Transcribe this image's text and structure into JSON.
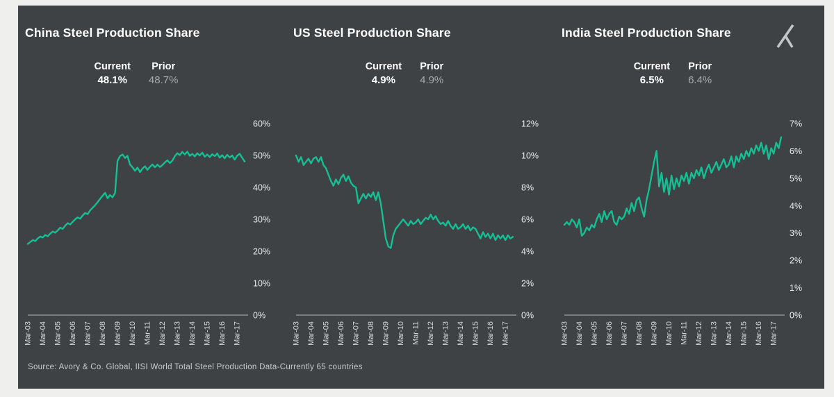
{
  "page": {
    "outer_background": "#efefee",
    "panel_background": "#3f4245"
  },
  "logo": {
    "name": "avory-logo",
    "color": "#c6c6c6"
  },
  "source_note": "Source: Avory & Co. Global, IISI World Total Steel Production Data-Currently 65 countries",
  "chart_data": [
    {
      "type": "line",
      "title": "China Steel Production Share",
      "current_label": "Current",
      "prior_label": "Prior",
      "current": "48.1%",
      "prior": "48.7%",
      "line_color": "#16be94",
      "ylim": [
        0,
        60
      ],
      "ytick_labels": [
        "0%",
        "10%",
        "20%",
        "30%",
        "40%",
        "50%",
        "60%"
      ],
      "x_start": "Mar-03",
      "x_step_months": 2,
      "x_tick_labels": [
        "Mar-03",
        "Mar-04",
        "Mar-05",
        "Mar-06",
        "Mar-07",
        "Mar-08",
        "Mar-09",
        "Mar-10",
        "Mar-11",
        "Mar-12",
        "Mar-13",
        "Mar-14",
        "Mar-15",
        "Mar-16",
        "Mar-17"
      ],
      "values": [
        22.3,
        22.9,
        23.5,
        23.2,
        24.0,
        24.6,
        24.3,
        25.1,
        24.7,
        25.5,
        26.2,
        25.8,
        26.5,
        27.4,
        27.0,
        28.0,
        28.8,
        28.4,
        29.2,
        30.0,
        30.6,
        30.2,
        31.2,
        32.0,
        31.6,
        32.8,
        33.6,
        34.4,
        35.4,
        36.4,
        37.4,
        38.3,
        36.6,
        37.6,
        36.9,
        38.2,
        48.3,
        49.8,
        50.3,
        49.2,
        49.9,
        47.2,
        46.3,
        45.2,
        46.2,
        44.8,
        45.9,
        46.6,
        45.5,
        46.4,
        47.2,
        46.3,
        47.1,
        46.4,
        47.0,
        47.8,
        48.5,
        47.6,
        48.4,
        49.8,
        50.7,
        50.1,
        51.1,
        50.3,
        51.2,
        49.9,
        50.5,
        49.7,
        50.7,
        50.0,
        50.9,
        49.6,
        50.3,
        49.5,
        50.4,
        49.8,
        50.6,
        49.3,
        50.1,
        49.1,
        50.2,
        49.4,
        50.0,
        48.7,
        49.9,
        50.5,
        49.3,
        48.1
      ]
    },
    {
      "type": "line",
      "title": "US Steel Production Share",
      "current_label": "Current",
      "prior_label": "Prior",
      "current": "4.9%",
      "prior": "4.9%",
      "line_color": "#16be94",
      "ylim": [
        0,
        12
      ],
      "ytick_labels": [
        "0%",
        "2%",
        "4%",
        "6%",
        "8%",
        "10%",
        "12%"
      ],
      "x_start": "Mar-03",
      "x_step_months": 2,
      "x_tick_labels": [
        "Mar-03",
        "Mar-04",
        "Mar-05",
        "Mar-06",
        "Mar-07",
        "Mar-08",
        "Mar-09",
        "Mar-10",
        "Mar-11",
        "Mar-12",
        "Mar-13",
        "Mar-14",
        "Mar-15",
        "Mar-16",
        "Mar-17"
      ],
      "values": [
        10.0,
        9.6,
        9.9,
        9.4,
        9.6,
        9.8,
        9.5,
        9.8,
        9.9,
        9.6,
        9.9,
        9.4,
        9.2,
        8.8,
        8.4,
        8.1,
        8.5,
        8.2,
        8.6,
        8.8,
        8.4,
        8.7,
        8.3,
        8.1,
        8.0,
        7.0,
        7.3,
        7.6,
        7.3,
        7.6,
        7.4,
        7.7,
        7.2,
        7.7,
        7.0,
        5.9,
        4.8,
        4.3,
        4.2,
        5.0,
        5.4,
        5.6,
        5.8,
        6.0,
        5.8,
        5.6,
        5.9,
        5.7,
        5.8,
        6.0,
        5.7,
        5.9,
        6.1,
        6.0,
        6.3,
        6.0,
        6.2,
        5.9,
        5.7,
        5.8,
        5.6,
        5.9,
        5.6,
        5.4,
        5.7,
        5.4,
        5.5,
        5.7,
        5.4,
        5.6,
        5.3,
        5.5,
        5.4,
        5.1,
        4.8,
        5.2,
        4.9,
        5.1,
        4.8,
        5.1,
        4.7,
        5.0,
        4.8,
        5.0,
        4.7,
        5.0,
        4.8,
        4.9
      ]
    },
    {
      "type": "line",
      "title": "India Steel Production Share",
      "current_label": "Current",
      "prior_label": "Prior",
      "current": "6.5%",
      "prior": "6.4%",
      "line_color": "#16be94",
      "ylim": [
        0,
        7
      ],
      "ytick_labels": [
        "0%",
        "1%",
        "2%",
        "3%",
        "4%",
        "5%",
        "6%",
        "7%"
      ],
      "x_start": "Mar-03",
      "x_step_months": 2,
      "x_tick_labels": [
        "Mar-03",
        "Mar-04",
        "Mar-05",
        "Mar-06",
        "Mar-07",
        "Mar-08",
        "Mar-09",
        "Mar-10",
        "Mar-11",
        "Mar-12",
        "Mar-13",
        "Mar-14",
        "Mar-15",
        "Mar-16",
        "Mar-17"
      ],
      "values": [
        3.3,
        3.4,
        3.3,
        3.5,
        3.4,
        3.2,
        3.5,
        2.9,
        3.0,
        3.2,
        3.1,
        3.3,
        3.2,
        3.5,
        3.7,
        3.4,
        3.8,
        3.5,
        3.7,
        3.8,
        3.4,
        3.3,
        3.6,
        3.5,
        3.6,
        3.9,
        3.7,
        4.1,
        3.8,
        4.2,
        4.3,
        3.9,
        3.6,
        4.2,
        4.6,
        5.1,
        5.6,
        6.0,
        4.7,
        5.2,
        4.5,
        5.0,
        4.4,
        5.1,
        4.6,
        5.0,
        4.7,
        5.1,
        4.9,
        5.2,
        4.8,
        5.2,
        5.0,
        5.3,
        5.1,
        5.4,
        5.0,
        5.3,
        5.5,
        5.2,
        5.4,
        5.6,
        5.3,
        5.5,
        5.7,
        5.4,
        5.5,
        5.8,
        5.4,
        5.8,
        5.6,
        5.9,
        5.7,
        6.0,
        5.8,
        6.1,
        5.9,
        6.2,
        6.0,
        6.3,
        5.9,
        6.2,
        5.7,
        6.1,
        5.9,
        6.3,
        6.1,
        6.5
      ]
    }
  ]
}
